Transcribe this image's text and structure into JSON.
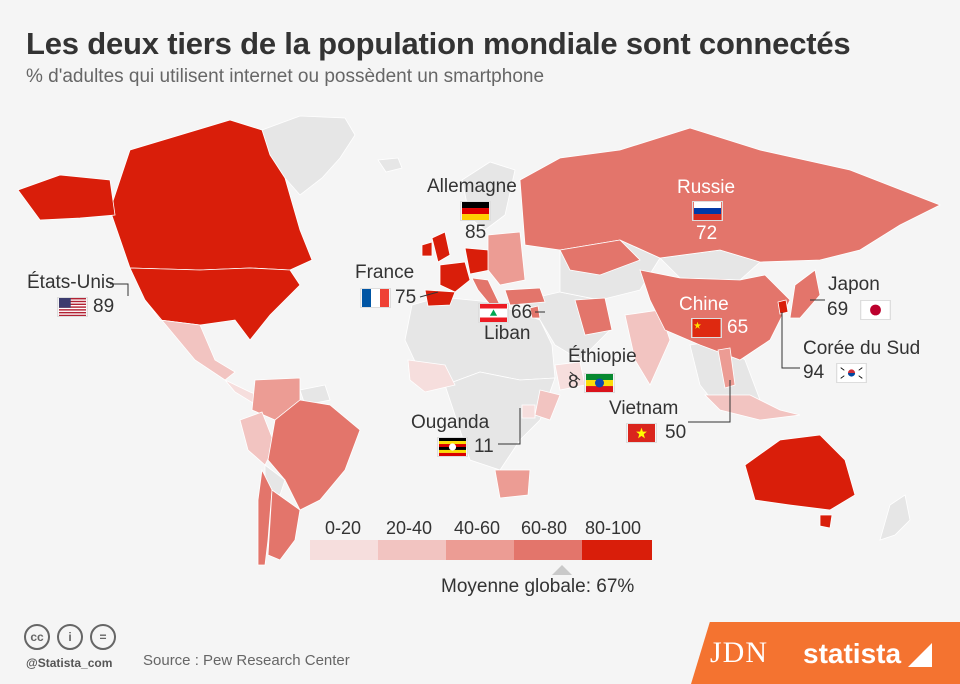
{
  "header": {
    "title": "Les deux tiers de la population mondiale sont connectés",
    "subtitle": "% d'adultes qui utilisent internet ou possèdent un smartphone"
  },
  "colors": {
    "c0_20": "#f6dedd",
    "c20_40": "#f2c4c1",
    "c40_60": "#ec9c94",
    "c60_80": "#e3756b",
    "c80_100": "#d91e0a",
    "nodata": "#e6e6e6",
    "brand": "#f47330"
  },
  "countries": [
    {
      "name": "États-Unis",
      "value": "89",
      "flag": "us-flag-icon"
    },
    {
      "name": "France",
      "value": "75",
      "flag": "france-flag-icon"
    },
    {
      "name": "Allemagne",
      "value": "85",
      "flag": "germany-flag-icon"
    },
    {
      "name": "Liban",
      "value": "66",
      "flag": "lebanon-flag-icon"
    },
    {
      "name": "Russie",
      "value": "72",
      "flag": "russia-flag-icon"
    },
    {
      "name": "Chine",
      "value": "65",
      "flag": "china-flag-icon"
    },
    {
      "name": "Japon",
      "value": "69",
      "flag": "japan-flag-icon"
    },
    {
      "name": "Corée du Sud",
      "value": "94",
      "flag": "south-korea-flag-icon"
    },
    {
      "name": "Éthiopie",
      "value": "8",
      "flag": "ethiopia-flag-icon"
    },
    {
      "name": "Ouganda",
      "value": "11",
      "flag": "uganda-flag-icon"
    },
    {
      "name": "Vietnam",
      "value": "50",
      "flag": "vietnam-flag-icon"
    }
  ],
  "legend": {
    "bins": [
      "0-20",
      "20-40",
      "40-60",
      "60-80",
      "80-100"
    ],
    "average_label": "Moyenne globale: 67%",
    "average_value": 67
  },
  "footer": {
    "handle": "@Statista_com",
    "source": "Source : Pew Research Center",
    "brand_jdn": "JDN",
    "brand_statista": "statista"
  }
}
